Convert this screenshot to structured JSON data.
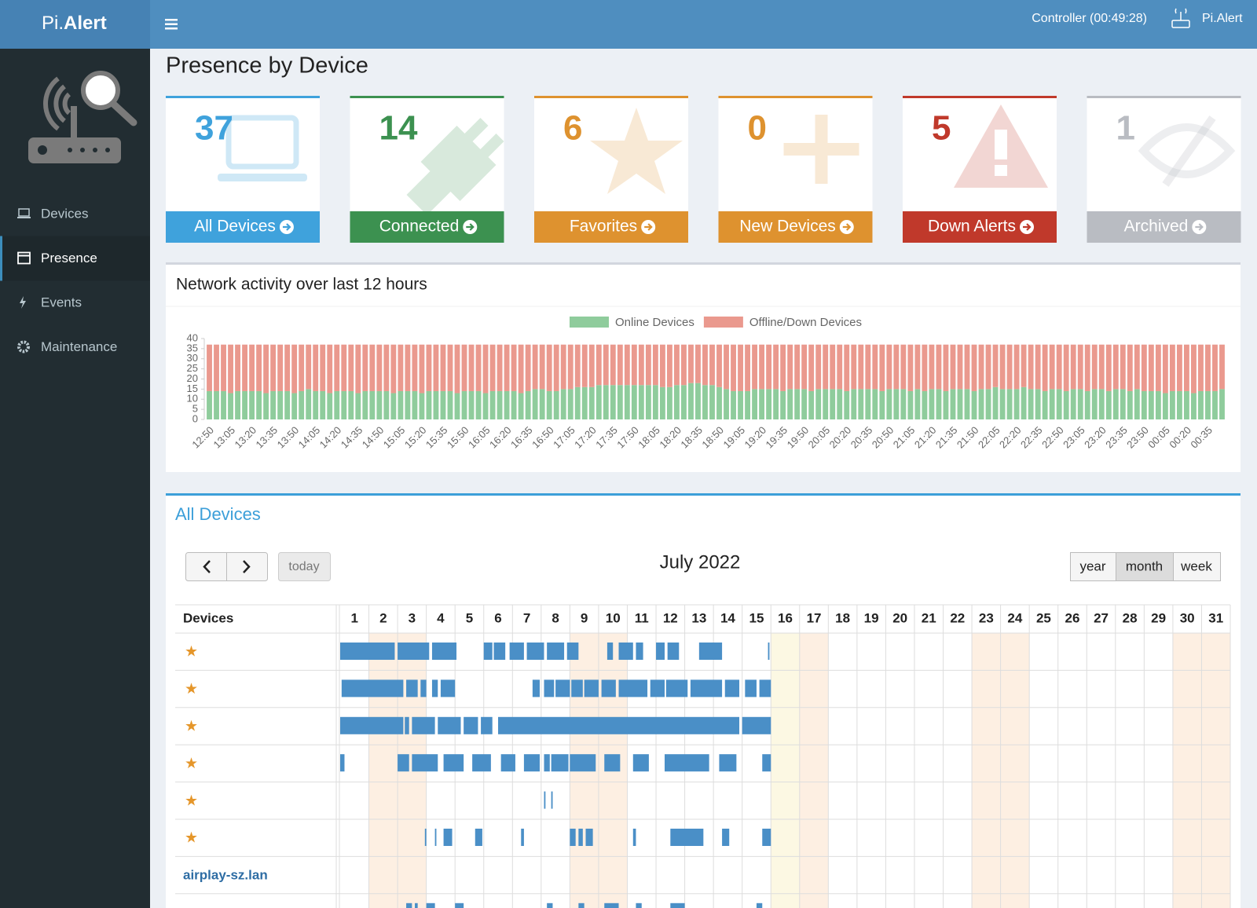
{
  "header": {
    "brand_light": "Pi.",
    "brand_bold": "Alert",
    "controller": "Controller (00:49:28)",
    "user": "Pi.Alert"
  },
  "sidebar": {
    "items": [
      "Devices",
      "Presence",
      "Events",
      "Maintenance"
    ],
    "active": 1
  },
  "page_title": "Presence by Device",
  "cards": [
    {
      "count": 37,
      "label": "All Devices",
      "color": "#3fa2dc"
    },
    {
      "count": 14,
      "label": "Connected",
      "color": "#3c9150"
    },
    {
      "count": 6,
      "label": "Favorites",
      "color": "#de922f"
    },
    {
      "count": 0,
      "label": "New Devices",
      "color": "#de922f"
    },
    {
      "count": 5,
      "label": "Down Alerts",
      "color": "#c0392b"
    },
    {
      "count": 1,
      "label": "Archived",
      "color": "#b9bcc2"
    }
  ],
  "chart_data": {
    "type": "bar",
    "stacked": true,
    "title": "Network activity over last 12 hours",
    "categories": [
      "12:50",
      null,
      null,
      "13:05",
      null,
      null,
      "13:20",
      null,
      null,
      "13:35",
      null,
      null,
      "13:50",
      null,
      null,
      "14:05",
      null,
      null,
      "14:20",
      null,
      null,
      "14:35",
      null,
      null,
      "14:50",
      null,
      null,
      "15:05",
      null,
      null,
      "15:20",
      null,
      null,
      "15:35",
      null,
      null,
      "15:50",
      null,
      null,
      "16:05",
      null,
      null,
      "16:20",
      null,
      null,
      "16:35",
      null,
      null,
      "16:50",
      null,
      null,
      "17:05",
      null,
      null,
      "17:20",
      null,
      null,
      "17:35",
      null,
      null,
      "17:50",
      null,
      null,
      "18:05",
      null,
      null,
      "18:20",
      null,
      null,
      "18:35",
      null,
      null,
      "18:50",
      null,
      null,
      "19:05",
      null,
      null,
      "19:20",
      null,
      null,
      "19:35",
      null,
      null,
      "19:50",
      null,
      null,
      "20:05",
      null,
      null,
      "20:20",
      null,
      null,
      "20:35",
      null,
      null,
      "20:50",
      null,
      null,
      "21:05",
      null,
      null,
      "21:20",
      null,
      null,
      "21:35",
      null,
      null,
      "21:50",
      null,
      null,
      "22:05",
      null,
      null,
      "22:20",
      null,
      null,
      "22:35",
      null,
      null,
      "22:50",
      null,
      null,
      "23:05",
      null,
      null,
      "23:20",
      null,
      null,
      "23:35",
      null,
      null,
      "23:50",
      null,
      null,
      "00:05",
      null,
      null,
      "00:20",
      null,
      null,
      "00:35",
      null,
      null
    ],
    "series": [
      {
        "name": "Online Devices",
        "color": "#8fcc9c",
        "values": [
          14,
          14,
          14,
          13,
          14,
          14,
          14,
          14,
          13,
          14,
          14,
          14,
          13,
          14,
          15,
          14,
          14,
          13,
          14,
          14,
          14,
          13,
          14,
          14,
          14,
          14,
          13,
          14,
          14,
          14,
          13,
          14,
          14,
          14,
          14,
          13,
          14,
          14,
          14,
          13,
          14,
          14,
          14,
          14,
          13,
          14,
          15,
          15,
          14,
          14,
          15,
          15,
          16,
          16,
          16,
          17,
          17,
          17,
          17,
          17,
          17,
          17,
          17,
          17,
          16,
          16,
          17,
          17,
          18,
          18,
          17,
          17,
          16,
          15,
          14,
          14,
          14,
          15,
          15,
          15,
          15,
          14,
          15,
          15,
          15,
          14,
          15,
          15,
          15,
          15,
          14,
          15,
          15,
          15,
          15,
          14,
          15,
          15,
          15,
          14,
          15,
          14,
          15,
          15,
          14,
          15,
          15,
          15,
          14,
          15,
          15,
          16,
          15,
          15,
          15,
          16,
          15,
          15,
          14,
          15,
          15,
          14,
          15,
          15,
          14,
          15,
          15,
          14,
          15,
          15,
          14,
          15,
          14,
          14,
          14,
          13,
          14,
          14,
          14,
          13,
          14,
          14,
          14,
          15
        ]
      },
      {
        "name": "Offline/Down Devices",
        "color": "#ea998e",
        "values": [
          23,
          23,
          23,
          24,
          23,
          23,
          23,
          23,
          24,
          23,
          23,
          23,
          24,
          23,
          22,
          23,
          23,
          24,
          23,
          23,
          23,
          24,
          23,
          23,
          23,
          23,
          24,
          23,
          23,
          23,
          24,
          23,
          23,
          23,
          23,
          24,
          23,
          23,
          23,
          24,
          23,
          23,
          23,
          23,
          24,
          23,
          22,
          22,
          23,
          23,
          22,
          22,
          21,
          21,
          21,
          20,
          20,
          20,
          20,
          20,
          20,
          20,
          20,
          20,
          21,
          21,
          20,
          20,
          19,
          19,
          20,
          20,
          21,
          22,
          23,
          23,
          23,
          22,
          22,
          22,
          22,
          23,
          22,
          22,
          22,
          23,
          22,
          22,
          22,
          22,
          23,
          22,
          22,
          22,
          22,
          23,
          22,
          22,
          22,
          23,
          22,
          23,
          22,
          22,
          23,
          22,
          22,
          22,
          23,
          22,
          22,
          21,
          22,
          22,
          22,
          21,
          22,
          22,
          23,
          22,
          22,
          23,
          22,
          22,
          23,
          22,
          22,
          23,
          22,
          22,
          23,
          22,
          23,
          23,
          23,
          24,
          23,
          23,
          23,
          24,
          23,
          23,
          23,
          22
        ]
      }
    ],
    "ylim": [
      0,
      40
    ],
    "yticks": [
      0,
      5,
      10,
      15,
      20,
      25,
      30,
      35,
      40
    ],
    "grid": false,
    "legend": "top"
  },
  "calendar": {
    "title": "All Devices",
    "today_button": "today",
    "month_title": "July 2022",
    "views": [
      "year",
      "month",
      "week"
    ],
    "active_view": 1,
    "column_header": "Devices",
    "days": [
      1,
      2,
      3,
      4,
      5,
      6,
      7,
      8,
      9,
      10,
      11,
      12,
      13,
      14,
      15,
      16,
      17,
      18,
      19,
      20,
      21,
      22,
      23,
      24,
      25,
      26,
      27,
      28,
      29,
      30,
      31
    ],
    "weekends": [
      2,
      3,
      9,
      10,
      16,
      17,
      23,
      24,
      30,
      31
    ],
    "today": 16,
    "rows": [
      {
        "label": "★",
        "sessions": [
          [
            1.0,
            2.9
          ],
          [
            3.0,
            4.1
          ],
          [
            4.2,
            5.05
          ],
          [
            6.0,
            6.3
          ],
          [
            6.35,
            6.75
          ],
          [
            6.9,
            7.4
          ],
          [
            7.5,
            8.1
          ],
          [
            8.2,
            8.8
          ],
          [
            8.9,
            9.3
          ],
          [
            10.3,
            10.5
          ],
          [
            10.7,
            11.2
          ],
          [
            11.3,
            11.55
          ],
          [
            12.0,
            12.3
          ],
          [
            12.4,
            12.8
          ],
          [
            13.5,
            14.3
          ],
          [
            15.9,
            15.95
          ]
        ]
      },
      {
        "label": "★",
        "sessions": [
          [
            1.05,
            3.2
          ],
          [
            3.3,
            3.7
          ],
          [
            3.8,
            4.0
          ],
          [
            4.2,
            4.4
          ],
          [
            4.5,
            5.0
          ],
          [
            7.7,
            7.95
          ],
          [
            8.1,
            8.45
          ],
          [
            8.5,
            9.0
          ],
          [
            9.05,
            9.45
          ],
          [
            9.5,
            10.0
          ],
          [
            10.1,
            10.6
          ],
          [
            10.7,
            11.7
          ],
          [
            11.8,
            12.3
          ],
          [
            12.35,
            13.1
          ],
          [
            13.2,
            14.3
          ],
          [
            14.4,
            14.9
          ],
          [
            15.1,
            15.5
          ],
          [
            15.6,
            16.0
          ]
        ]
      },
      {
        "label": "★",
        "sessions": [
          [
            1.0,
            3.2
          ],
          [
            3.25,
            3.4
          ],
          [
            3.5,
            4.3
          ],
          [
            4.4,
            5.2
          ],
          [
            5.3,
            5.8
          ],
          [
            5.9,
            6.3
          ],
          [
            6.5,
            14.9
          ],
          [
            15.0,
            16.0
          ]
        ]
      },
      {
        "label": "★",
        "sessions": [
          [
            1.0,
            1.15
          ],
          [
            3.0,
            3.4
          ],
          [
            3.5,
            4.4
          ],
          [
            4.6,
            5.3
          ],
          [
            5.6,
            6.25
          ],
          [
            6.6,
            7.1
          ],
          [
            7.4,
            7.95
          ],
          [
            8.1,
            8.3
          ],
          [
            8.35,
            8.95
          ],
          [
            9.0,
            9.9
          ],
          [
            10.2,
            10.75
          ],
          [
            11.2,
            11.75
          ],
          [
            12.3,
            13.85
          ],
          [
            14.2,
            14.8
          ],
          [
            15.7,
            16.0
          ]
        ]
      },
      {
        "label": "★",
        "sessions": [
          [
            8.1,
            8.15
          ],
          [
            8.35,
            8.4
          ]
        ]
      },
      {
        "label": "★",
        "sessions": [
          [
            3.95,
            4.0
          ],
          [
            4.3,
            4.35
          ],
          [
            4.6,
            4.9
          ],
          [
            5.7,
            5.95
          ],
          [
            7.3,
            7.4
          ],
          [
            9.0,
            9.2
          ],
          [
            9.3,
            9.45
          ],
          [
            9.55,
            9.8
          ],
          [
            11.2,
            11.3
          ],
          [
            12.5,
            13.65
          ],
          [
            14.3,
            14.55
          ],
          [
            15.7,
            16.0
          ]
        ]
      },
      {
        "label": "airplay-sz.lan",
        "sessions": []
      },
      {
        "sessions": [
          [
            3.3,
            3.5
          ],
          [
            3.6,
            3.7
          ],
          [
            4.0,
            4.3
          ],
          [
            5.0,
            5.3
          ],
          [
            8.2,
            8.4
          ],
          [
            9.3,
            9.5
          ],
          [
            10.2,
            10.7
          ],
          [
            11.3,
            11.5
          ],
          [
            12.5,
            13.0
          ],
          [
            15.5,
            15.7
          ]
        ]
      }
    ]
  }
}
